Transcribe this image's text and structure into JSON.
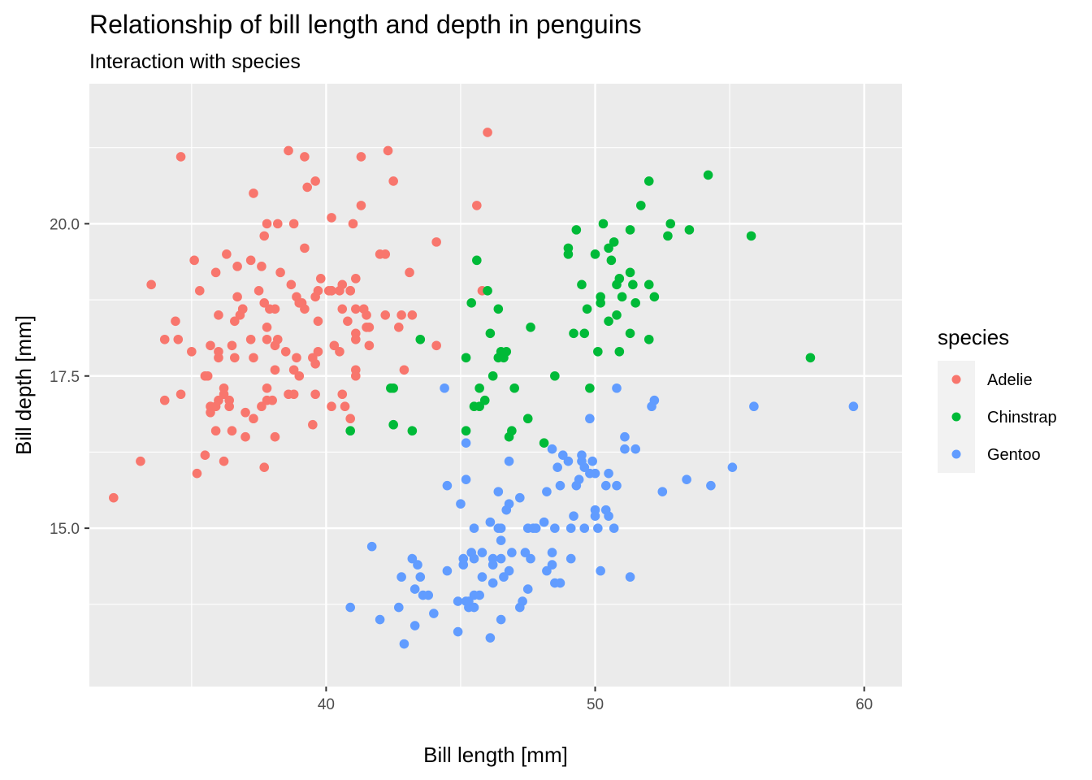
{
  "chart_data": {
    "type": "scatter",
    "title": "Relationship of bill length and depth in penguins",
    "subtitle": "Interaction with species",
    "xlabel": "Bill length [mm]",
    "ylabel": "Bill depth [mm]",
    "xlim": [
      31.2,
      61.4
    ],
    "ylim": [
      12.4,
      22.3
    ],
    "x_ticks": [
      40,
      50,
      60
    ],
    "y_ticks": [
      15.0,
      17.5,
      20.0
    ],
    "x_tick_labels": [
      "40",
      "50",
      "60"
    ],
    "y_tick_labels": [
      "15.0",
      "17.5",
      "20.0"
    ],
    "grid": true,
    "legend": {
      "title": "species",
      "position": "right"
    },
    "series": [
      {
        "name": "Adelie",
        "color": "#F8766D",
        "points": [
          [
            32.1,
            15.5
          ],
          [
            33.1,
            16.1
          ],
          [
            33.5,
            19.0
          ],
          [
            34.0,
            17.1
          ],
          [
            34.0,
            18.1
          ],
          [
            34.4,
            18.4
          ],
          [
            34.5,
            18.1
          ],
          [
            34.6,
            21.1
          ],
          [
            34.6,
            17.2
          ],
          [
            35.0,
            17.9
          ],
          [
            35.1,
            19.4
          ],
          [
            35.2,
            15.9
          ],
          [
            35.3,
            18.9
          ],
          [
            35.5,
            16.2
          ],
          [
            35.5,
            17.5
          ],
          [
            35.6,
            17.5
          ],
          [
            35.7,
            18.0
          ],
          [
            35.7,
            17.0
          ],
          [
            35.7,
            16.9
          ],
          [
            35.9,
            16.6
          ],
          [
            35.9,
            19.2
          ],
          [
            36.0,
            17.1
          ],
          [
            36.0,
            17.9
          ],
          [
            36.0,
            18.5
          ],
          [
            36.0,
            17.8
          ],
          [
            36.2,
            16.1
          ],
          [
            36.2,
            17.2
          ],
          [
            36.2,
            17.3
          ],
          [
            36.3,
            19.5
          ],
          [
            36.4,
            17.0
          ],
          [
            36.4,
            17.1
          ],
          [
            36.5,
            16.6
          ],
          [
            36.5,
            18.0
          ],
          [
            36.6,
            17.8
          ],
          [
            36.6,
            18.4
          ],
          [
            36.7,
            19.3
          ],
          [
            36.7,
            18.8
          ],
          [
            36.8,
            18.5
          ],
          [
            36.9,
            18.6
          ],
          [
            37.0,
            16.9
          ],
          [
            37.0,
            16.5
          ],
          [
            37.2,
            18.1
          ],
          [
            37.2,
            19.4
          ],
          [
            37.3,
            20.5
          ],
          [
            37.3,
            16.8
          ],
          [
            37.3,
            17.8
          ],
          [
            37.6,
            19.3
          ],
          [
            37.6,
            17.0
          ],
          [
            37.7,
            18.7
          ],
          [
            37.7,
            16.0
          ],
          [
            37.7,
            19.8
          ],
          [
            37.8,
            18.3
          ],
          [
            37.8,
            17.1
          ],
          [
            37.8,
            20.0
          ],
          [
            37.8,
            17.3
          ],
          [
            37.8,
            18.1
          ],
          [
            37.9,
            18.6
          ],
          [
            38.1,
            18.6
          ],
          [
            38.1,
            16.5
          ],
          [
            38.1,
            17.6
          ],
          [
            38.2,
            20.0
          ],
          [
            38.2,
            18.1
          ],
          [
            38.3,
            19.2
          ],
          [
            38.5,
            17.9
          ],
          [
            38.6,
            17.2
          ],
          [
            38.6,
            21.2
          ],
          [
            38.7,
            19.0
          ],
          [
            38.8,
            17.2
          ],
          [
            38.8,
            17.6
          ],
          [
            38.8,
            20.0
          ],
          [
            38.9,
            18.8
          ],
          [
            38.9,
            17.8
          ],
          [
            39.0,
            18.7
          ],
          [
            39.0,
            17.5
          ],
          [
            39.1,
            18.7
          ],
          [
            39.2,
            21.1
          ],
          [
            39.2,
            19.6
          ],
          [
            39.2,
            18.6
          ],
          [
            39.3,
            20.6
          ],
          [
            39.5,
            16.7
          ],
          [
            39.5,
            17.8
          ],
          [
            39.6,
            17.7
          ],
          [
            39.6,
            20.7
          ],
          [
            39.6,
            17.2
          ],
          [
            39.7,
            18.4
          ],
          [
            39.7,
            18.9
          ],
          [
            39.7,
            17.9
          ],
          [
            39.8,
            19.1
          ],
          [
            40.2,
            20.1
          ],
          [
            40.2,
            17.0
          ],
          [
            40.2,
            18.9
          ],
          [
            40.3,
            18.0
          ],
          [
            40.5,
            17.9
          ],
          [
            40.5,
            18.9
          ],
          [
            40.6,
            18.6
          ],
          [
            40.6,
            19.0
          ],
          [
            40.6,
            17.2
          ],
          [
            40.7,
            17.0
          ],
          [
            40.8,
            18.4
          ],
          [
            40.9,
            18.9
          ],
          [
            40.9,
            16.8
          ],
          [
            41.0,
            20.0
          ],
          [
            41.1,
            18.2
          ],
          [
            41.1,
            18.1
          ],
          [
            41.1,
            19.1
          ],
          [
            41.1,
            17.5
          ],
          [
            41.1,
            17.6
          ],
          [
            41.3,
            21.1
          ],
          [
            41.3,
            20.3
          ],
          [
            41.4,
            18.6
          ],
          [
            41.5,
            18.5
          ],
          [
            41.6,
            18.0
          ],
          [
            42.0,
            19.5
          ],
          [
            42.2,
            19.5
          ],
          [
            42.2,
            18.5
          ],
          [
            42.3,
            21.2
          ],
          [
            42.5,
            20.7
          ],
          [
            42.8,
            18.5
          ],
          [
            43.1,
            19.2
          ],
          [
            43.2,
            18.5
          ],
          [
            44.1,
            19.7
          ],
          [
            44.1,
            18.0
          ],
          [
            45.6,
            20.3
          ],
          [
            45.8,
            18.9
          ],
          [
            46.0,
            21.5
          ],
          [
            42.9,
            17.6
          ],
          [
            42.7,
            18.3
          ],
          [
            41.6,
            18.3
          ],
          [
            40.1,
            18.9
          ],
          [
            39.6,
            18.8
          ],
          [
            38.0,
            17.1
          ],
          [
            38.1,
            18.0
          ],
          [
            40.2,
            18.9
          ],
          [
            37.5,
            18.9
          ],
          [
            39.0,
            18.7
          ],
          [
            35.9,
            17.0
          ],
          [
            40.9,
            18.9
          ],
          [
            36.9,
            18.6
          ],
          [
            41.1,
            18.6
          ],
          [
            41.5,
            18.3
          ]
        ]
      },
      {
        "name": "Chinstrap",
        "color": "#00BA38",
        "points": [
          [
            40.9,
            16.6
          ],
          [
            42.4,
            17.3
          ],
          [
            42.5,
            16.7
          ],
          [
            42.5,
            17.3
          ],
          [
            43.2,
            16.6
          ],
          [
            43.5,
            18.1
          ],
          [
            45.2,
            17.8
          ],
          [
            45.2,
            16.6
          ],
          [
            45.4,
            18.7
          ],
          [
            45.5,
            17.0
          ],
          [
            45.6,
            19.4
          ],
          [
            45.7,
            17.3
          ],
          [
            45.7,
            17.0
          ],
          [
            45.9,
            17.1
          ],
          [
            46.0,
            18.9
          ],
          [
            46.1,
            18.2
          ],
          [
            46.2,
            17.5
          ],
          [
            46.4,
            18.6
          ],
          [
            46.4,
            17.8
          ],
          [
            46.5,
            17.9
          ],
          [
            46.6,
            17.8
          ],
          [
            46.7,
            17.9
          ],
          [
            46.8,
            16.5
          ],
          [
            46.9,
            16.6
          ],
          [
            47.0,
            17.3
          ],
          [
            47.5,
            16.8
          ],
          [
            47.6,
            18.3
          ],
          [
            48.1,
            16.4
          ],
          [
            48.5,
            17.5
          ],
          [
            49.0,
            19.5
          ],
          [
            49.0,
            19.6
          ],
          [
            49.2,
            18.2
          ],
          [
            49.3,
            19.9
          ],
          [
            49.5,
            19.0
          ],
          [
            49.6,
            18.2
          ],
          [
            49.7,
            18.6
          ],
          [
            49.8,
            17.3
          ],
          [
            50.0,
            19.5
          ],
          [
            50.1,
            17.9
          ],
          [
            50.2,
            18.8
          ],
          [
            50.2,
            18.7
          ],
          [
            50.3,
            20.0
          ],
          [
            50.5,
            18.4
          ],
          [
            50.5,
            19.6
          ],
          [
            50.6,
            19.4
          ],
          [
            50.7,
            19.7
          ],
          [
            50.8,
            18.5
          ],
          [
            50.8,
            19.0
          ],
          [
            50.9,
            19.1
          ],
          [
            50.9,
            17.9
          ],
          [
            51.0,
            18.8
          ],
          [
            51.3,
            18.2
          ],
          [
            51.3,
            19.2
          ],
          [
            51.3,
            19.9
          ],
          [
            51.4,
            19.0
          ],
          [
            51.5,
            18.7
          ],
          [
            51.7,
            20.3
          ],
          [
            52.0,
            18.1
          ],
          [
            52.0,
            19.0
          ],
          [
            52.0,
            20.7
          ],
          [
            52.2,
            18.8
          ],
          [
            52.7,
            19.8
          ],
          [
            52.8,
            20.0
          ],
          [
            53.5,
            19.9
          ],
          [
            54.2,
            20.8
          ],
          [
            55.8,
            19.8
          ],
          [
            58.0,
            17.8
          ]
        ]
      },
      {
        "name": "Gentoo",
        "color": "#619CFF",
        "points": [
          [
            40.9,
            13.7
          ],
          [
            41.7,
            14.7
          ],
          [
            42.0,
            13.5
          ],
          [
            42.7,
            13.7
          ],
          [
            42.8,
            14.2
          ],
          [
            42.9,
            13.1
          ],
          [
            43.2,
            14.5
          ],
          [
            43.3,
            13.4
          ],
          [
            43.3,
            14.0
          ],
          [
            43.4,
            14.4
          ],
          [
            43.5,
            14.2
          ],
          [
            43.6,
            13.9
          ],
          [
            43.8,
            13.9
          ],
          [
            44.0,
            13.6
          ],
          [
            44.4,
            17.3
          ],
          [
            44.5,
            14.3
          ],
          [
            44.5,
            15.7
          ],
          [
            44.9,
            13.3
          ],
          [
            44.9,
            13.8
          ],
          [
            45.0,
            15.4
          ],
          [
            45.1,
            14.5
          ],
          [
            45.1,
            14.4
          ],
          [
            45.2,
            13.8
          ],
          [
            45.2,
            15.8
          ],
          [
            45.2,
            16.4
          ],
          [
            45.3,
            13.7
          ],
          [
            45.3,
            13.8
          ],
          [
            45.4,
            14.6
          ],
          [
            45.5,
            13.7
          ],
          [
            45.5,
            13.9
          ],
          [
            45.5,
            14.5
          ],
          [
            45.5,
            15.0
          ],
          [
            45.7,
            13.9
          ],
          [
            45.8,
            14.2
          ],
          [
            45.8,
            14.6
          ],
          [
            46.1,
            13.2
          ],
          [
            46.1,
            15.1
          ],
          [
            46.2,
            14.1
          ],
          [
            46.2,
            14.5
          ],
          [
            46.2,
            14.4
          ],
          [
            46.4,
            15.0
          ],
          [
            46.4,
            15.6
          ],
          [
            46.5,
            13.5
          ],
          [
            46.5,
            14.5
          ],
          [
            46.5,
            14.8
          ],
          [
            46.5,
            15.0
          ],
          [
            46.6,
            14.2
          ],
          [
            46.7,
            15.3
          ],
          [
            46.8,
            14.3
          ],
          [
            46.8,
            15.4
          ],
          [
            46.8,
            16.1
          ],
          [
            46.9,
            14.6
          ],
          [
            47.2,
            13.7
          ],
          [
            47.2,
            15.5
          ],
          [
            47.3,
            13.8
          ],
          [
            47.4,
            14.6
          ],
          [
            47.5,
            14.0
          ],
          [
            47.5,
            15.0
          ],
          [
            47.6,
            14.5
          ],
          [
            47.7,
            15.0
          ],
          [
            47.8,
            15.0
          ],
          [
            48.1,
            15.1
          ],
          [
            48.2,
            14.3
          ],
          [
            48.2,
            15.6
          ],
          [
            48.4,
            14.6
          ],
          [
            48.4,
            16.3
          ],
          [
            48.4,
            14.4
          ],
          [
            48.5,
            14.1
          ],
          [
            48.5,
            15.0
          ],
          [
            48.6,
            16.0
          ],
          [
            48.7,
            14.1
          ],
          [
            48.7,
            15.7
          ],
          [
            48.8,
            16.2
          ],
          [
            49.0,
            16.1
          ],
          [
            49.1,
            14.5
          ],
          [
            49.1,
            15.0
          ],
          [
            49.2,
            15.2
          ],
          [
            49.3,
            15.7
          ],
          [
            49.4,
            15.8
          ],
          [
            49.5,
            16.1
          ],
          [
            49.5,
            16.2
          ],
          [
            49.6,
            15.0
          ],
          [
            49.6,
            16.0
          ],
          [
            49.8,
            15.9
          ],
          [
            49.8,
            16.8
          ],
          [
            49.9,
            16.1
          ],
          [
            50.0,
            15.2
          ],
          [
            50.0,
            15.9
          ],
          [
            50.0,
            15.3
          ],
          [
            50.1,
            15.0
          ],
          [
            50.2,
            14.3
          ],
          [
            50.4,
            15.3
          ],
          [
            50.4,
            15.7
          ],
          [
            50.5,
            15.2
          ],
          [
            50.5,
            15.9
          ],
          [
            50.7,
            15.0
          ],
          [
            50.8,
            15.7
          ],
          [
            50.8,
            17.3
          ],
          [
            51.1,
            16.3
          ],
          [
            51.1,
            16.5
          ],
          [
            51.3,
            14.2
          ],
          [
            51.5,
            16.3
          ],
          [
            52.1,
            17.0
          ],
          [
            52.2,
            17.1
          ],
          [
            52.5,
            15.6
          ],
          [
            53.4,
            15.8
          ],
          [
            54.3,
            15.7
          ],
          [
            55.1,
            16.0
          ],
          [
            55.9,
            17.0
          ],
          [
            59.6,
            17.0
          ]
        ]
      }
    ]
  }
}
